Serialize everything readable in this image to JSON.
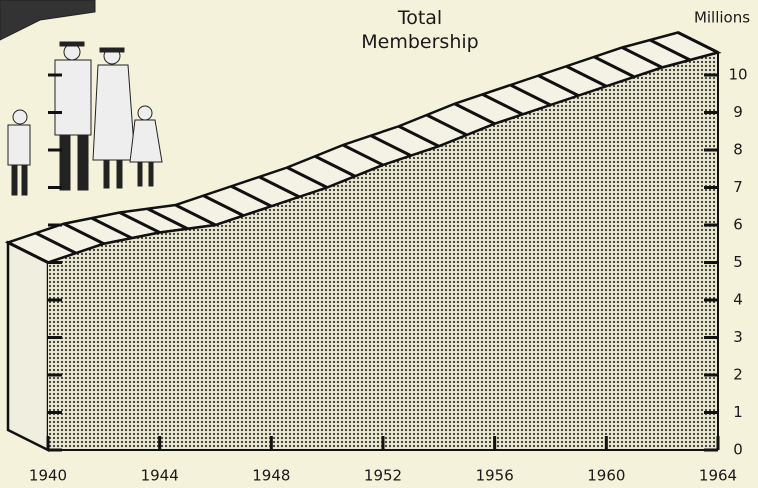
{
  "chart_data": {
    "type": "area",
    "title": "Total Membership",
    "y_label": "Millions",
    "x": [
      1940,
      1942,
      1944,
      1946,
      1948,
      1950,
      1952,
      1954,
      1956,
      1958,
      1960,
      1962,
      1964
    ],
    "values": [
      5.0,
      5.5,
      5.8,
      6.0,
      6.5,
      7.0,
      7.6,
      8.1,
      8.7,
      9.2,
      9.7,
      10.2,
      10.6
    ],
    "xlim": [
      1940,
      1964
    ],
    "xticks": [
      1940,
      1944,
      1948,
      1952,
      1956,
      1960,
      1964
    ],
    "ylim": [
      0,
      11
    ],
    "yticks": [
      0,
      1,
      2,
      3,
      4,
      5,
      6,
      7,
      8,
      9,
      10
    ],
    "color": "#d6d4bd"
  }
}
